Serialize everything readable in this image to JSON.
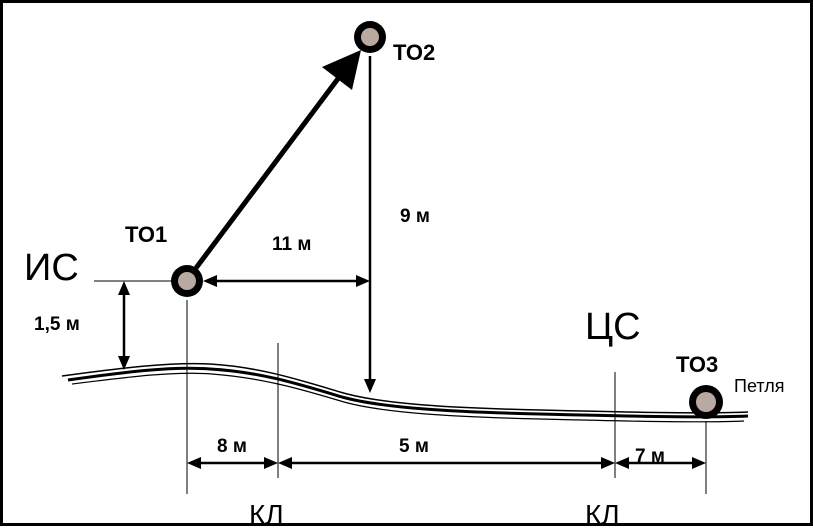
{
  "points": {
    "to1": "ТО1",
    "to2": "ТО2",
    "to3": "ТО3",
    "loop": "Петля"
  },
  "stations": {
    "instrument": "ИС",
    "target": "ЦС"
  },
  "breaks": {
    "left": "КЛ",
    "right": "КЛ"
  },
  "distances": {
    "height": "1,5 м",
    "horizontal_to2": "11 м",
    "vertical_to2": "9 м",
    "bottom_left": "8 м",
    "bottom_middle": "5 м",
    "bottom_right": "7 м"
  }
}
